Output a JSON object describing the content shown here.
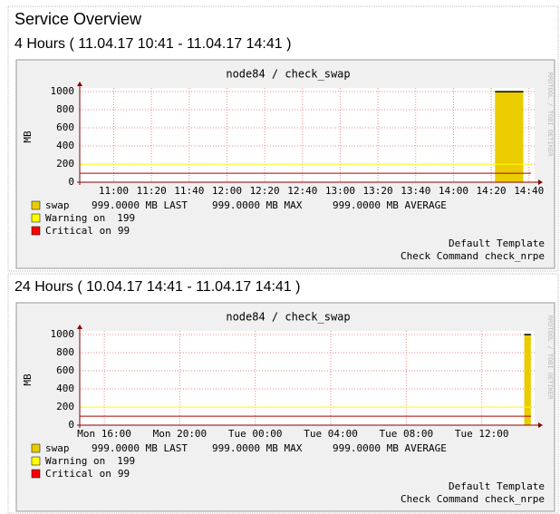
{
  "page_title": "Service Overview",
  "chart_data": [
    {
      "type": "area",
      "section_title": "4 Hours ( 11.04.17 10:41 - 11.04.17 14:41 )",
      "title": "node84 / check_swap",
      "y_label": "MB",
      "watermark": "RRDTOOL / TOBI OETIKER",
      "xlim": [
        642,
        883
      ],
      "xticks": [
        {
          "value": 660,
          "label": "11:00"
        },
        {
          "value": 680,
          "label": "11:20"
        },
        {
          "value": 700,
          "label": "11:40"
        },
        {
          "value": 720,
          "label": "12:00"
        },
        {
          "value": 740,
          "label": "12:20"
        },
        {
          "value": 760,
          "label": "12:40"
        },
        {
          "value": 780,
          "label": "13:00"
        },
        {
          "value": 800,
          "label": "13:20"
        },
        {
          "value": 820,
          "label": "13:40"
        },
        {
          "value": 840,
          "label": "14:00"
        },
        {
          "value": 860,
          "label": "14:20"
        },
        {
          "value": 880,
          "label": "14:40"
        }
      ],
      "ylim": [
        0,
        1000
      ],
      "yticks": [
        0,
        200,
        400,
        600,
        800,
        1000
      ],
      "grid": true,
      "series": [
        {
          "name": "swap",
          "color": "#eacc00",
          "x": [
            862,
            877
          ],
          "values": [
            999,
            999
          ],
          "stats": [
            "999.0000 MB LAST",
            "999.0000 MB MAX",
            "999.0000 MB AVERAGE"
          ]
        }
      ],
      "thresholds": [
        {
          "name": "Warning on",
          "value": 199,
          "color": "#ffff00"
        },
        {
          "name": "Critical on",
          "value": 99,
          "color": "#ff0000"
        }
      ],
      "footer": [
        "Default Template",
        "Check Command check_nrpe"
      ]
    },
    {
      "type": "area",
      "section_title": "24 Hours ( 10.04.17 14:41 - 11.04.17 14:41 )",
      "title": "node84 / check_swap",
      "y_label": "MB",
      "watermark": "RRDTOOL / TOBI OETIKER",
      "xlim": [
        14.7,
        38.8
      ],
      "xticks": [
        {
          "value": 16,
          "label": "Mon 16:00"
        },
        {
          "value": 20,
          "label": "Mon 20:00"
        },
        {
          "value": 24,
          "label": "Tue 00:00"
        },
        {
          "value": 28,
          "label": "Tue 04:00"
        },
        {
          "value": 32,
          "label": "Tue 08:00"
        },
        {
          "value": 36,
          "label": "Tue 12:00"
        }
      ],
      "ylim": [
        0,
        1000
      ],
      "yticks": [
        0,
        200,
        400,
        600,
        800,
        1000
      ],
      "grid": true,
      "series": [
        {
          "name": "swap",
          "color": "#eacc00",
          "x": [
            38.25,
            38.6
          ],
          "values": [
            999,
            999
          ],
          "stats": [
            "999.0000 MB LAST",
            "999.0000 MB MAX",
            "999.0000 MB AVERAGE"
          ]
        }
      ],
      "thresholds": [
        {
          "name": "Warning on",
          "value": 199,
          "color": "#ffff00"
        },
        {
          "name": "Critical on",
          "value": 99,
          "color": "#ff0000"
        }
      ],
      "footer": [
        "Default Template",
        "Check Command check_nrpe"
      ]
    }
  ]
}
